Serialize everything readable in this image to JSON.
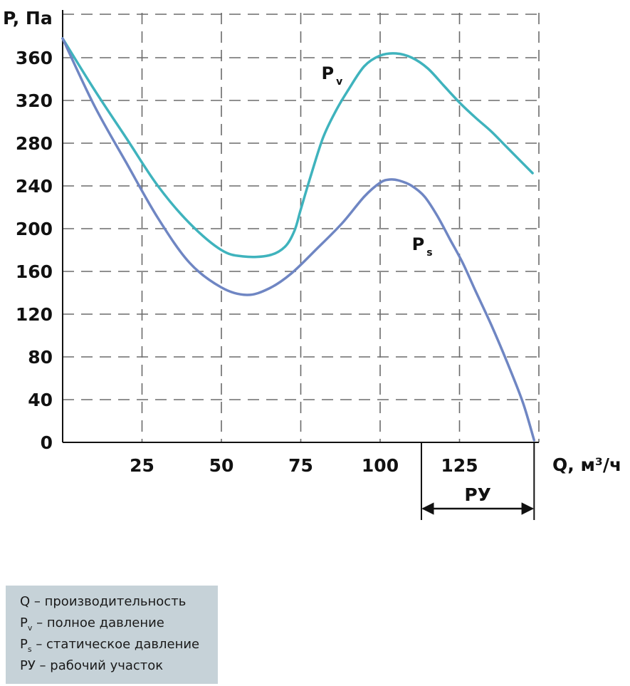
{
  "chart_data": {
    "type": "line",
    "ylabel": "P, Па",
    "xlabel": "Q, м³/ч",
    "x_ticks": [
      "25",
      "50",
      "75",
      "100",
      "125"
    ],
    "y_ticks": [
      "0",
      "40",
      "80",
      "120",
      "160",
      "200",
      "240",
      "280",
      "320",
      "360"
    ],
    "xlim": [
      0,
      150
    ],
    "ylim": [
      0,
      380
    ],
    "grid": true,
    "series": [
      {
        "name": "P",
        "subscript": "v",
        "color": "#3fb3bd",
        "x": [
          0,
          10,
          20,
          30,
          40,
          50,
          57,
          65,
          70,
          73,
          75,
          78,
          82,
          86,
          90,
          95,
          100,
          105,
          110,
          115,
          120,
          125,
          130,
          135,
          140,
          148
        ],
        "y": [
          378,
          330,
          285,
          240,
          205,
          180,
          174,
          175,
          183,
          198,
          218,
          248,
          285,
          310,
          330,
          352,
          362,
          364,
          360,
          350,
          334,
          318,
          304,
          291,
          276,
          252
        ]
      },
      {
        "name": "P",
        "subscript": "s",
        "color": "#6f86c3",
        "x": [
          0,
          10,
          20,
          30,
          40,
          50,
          58,
          65,
          72,
          80,
          88,
          95,
          100,
          103,
          106,
          110,
          114,
          118,
          122,
          126,
          130,
          135,
          140,
          145,
          148.5
        ],
        "y": [
          378,
          315,
          262,
          210,
          168,
          145,
          138,
          144,
          158,
          181,
          205,
          230,
          243,
          246,
          245,
          240,
          230,
          212,
          190,
          168,
          142,
          110,
          75,
          37,
          2
        ]
      }
    ],
    "range_marker": {
      "label": "РУ",
      "from": 113,
      "to": 148.5
    }
  },
  "legend": {
    "line1": {
      "text": "Q – производительность"
    },
    "line2": {
      "symbol": "P",
      "sub": "v",
      "text": " – полное давление"
    },
    "line3": {
      "symbol": "P",
      "sub": "s",
      "text": " – статическое давление"
    },
    "line4": {
      "text": "РУ – рабочий участок"
    }
  }
}
